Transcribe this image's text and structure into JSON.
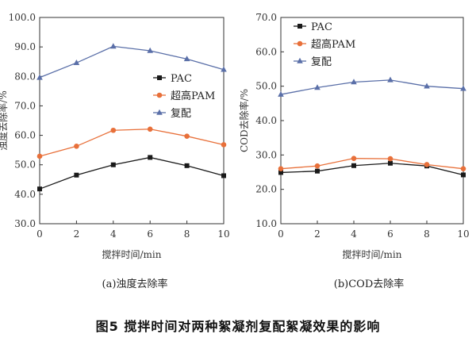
{
  "caption": "图5  搅拌时间对两种絮凝剂复配絮凝效果的影响",
  "colors": {
    "PAC": "#1a1a1a",
    "PAM": "#e8703a",
    "mix": "#5a6fa8"
  },
  "chart_data": [
    {
      "type": "line",
      "subtitle": "(a)浊度去除率",
      "xlabel": "搅拌时间/min",
      "ylabel": "浊度去除率/%",
      "x": [
        0,
        2,
        4,
        6,
        8,
        10
      ],
      "xticks": [
        "0",
        "2",
        "4",
        "6",
        "8",
        "10"
      ],
      "ylim": [
        30,
        100
      ],
      "yticks": [
        "30.0",
        "40.0",
        "50.0",
        "60.0",
        "70.0",
        "80.0",
        "90.0",
        "100.0"
      ],
      "legend_position": "right-middle",
      "series": [
        {
          "name": "PAC",
          "marker": "square",
          "color": "#1a1a1a",
          "values": [
            41.8,
            46.5,
            50.0,
            52.5,
            49.7,
            46.3
          ]
        },
        {
          "name": "超高PAM",
          "marker": "circle",
          "color": "#e8703a",
          "values": [
            52.9,
            56.3,
            61.7,
            62.1,
            59.7,
            56.8
          ]
        },
        {
          "name": "复配",
          "marker": "triangle",
          "color": "#5a6fa8",
          "values": [
            79.6,
            84.6,
            90.2,
            88.7,
            85.9,
            82.3
          ]
        }
      ]
    },
    {
      "type": "line",
      "subtitle": "(b)COD去除率",
      "xlabel": "搅拌时间/min",
      "ylabel": "COD去除率/%",
      "x": [
        0,
        2,
        4,
        6,
        8,
        10
      ],
      "xticks": [
        "0",
        "2",
        "4",
        "6",
        "8",
        "10"
      ],
      "ylim": [
        10,
        70
      ],
      "yticks": [
        "10.0",
        "20.0",
        "30.0",
        "40.0",
        "50.0",
        "60.0",
        "70.0"
      ],
      "legend_position": "top-left",
      "series": [
        {
          "name": "PAC",
          "marker": "square",
          "color": "#1a1a1a",
          "values": [
            24.9,
            25.3,
            26.9,
            27.6,
            26.8,
            24.2
          ]
        },
        {
          "name": "超高PAM",
          "marker": "circle",
          "color": "#e8703a",
          "values": [
            26.0,
            26.8,
            29.0,
            28.9,
            27.2,
            26.0
          ]
        },
        {
          "name": "复配",
          "marker": "triangle",
          "color": "#5a6fa8",
          "values": [
            47.6,
            49.6,
            51.2,
            51.8,
            50.0,
            49.3
          ]
        }
      ]
    }
  ]
}
